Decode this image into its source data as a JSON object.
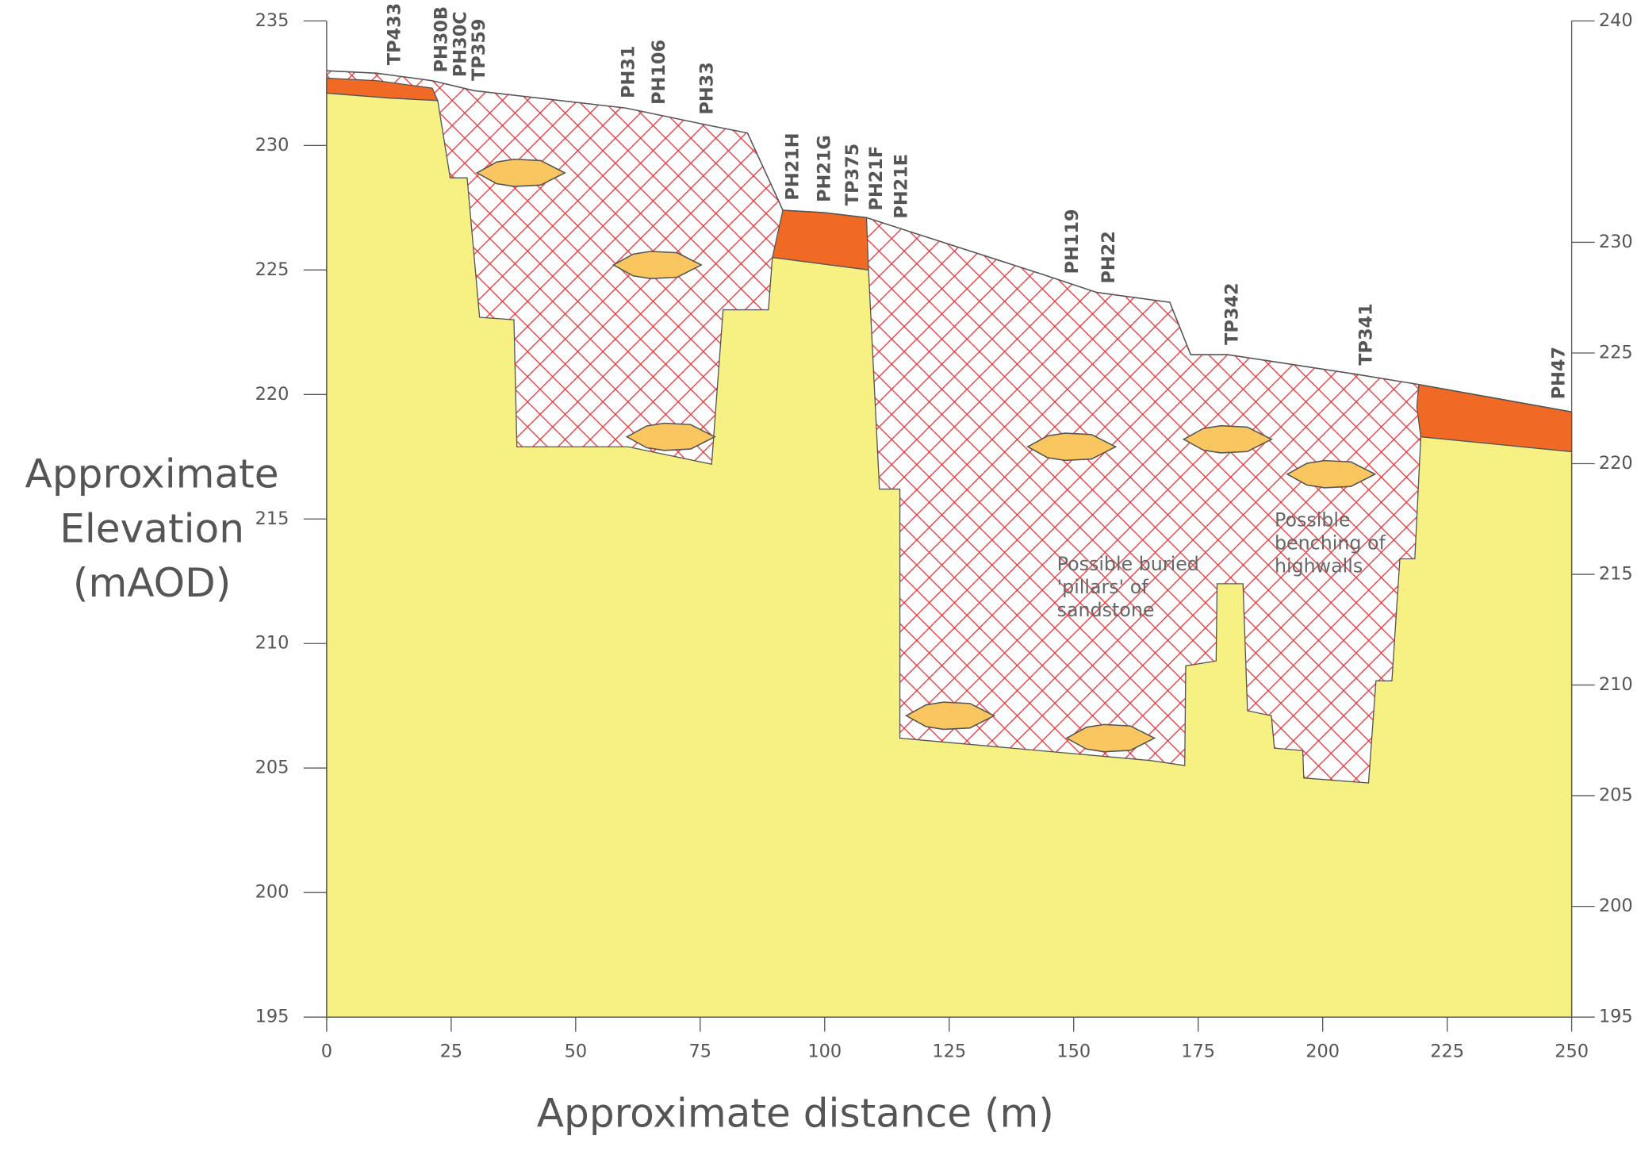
{
  "chart_data": {
    "type": "cross_section",
    "xlabel": "Approximate distance (m)",
    "ylabel": [
      "Approximate",
      "Elevation",
      "(mAOD)"
    ],
    "xlim": [
      0,
      250
    ],
    "xticks": [
      0,
      25,
      50,
      75,
      100,
      125,
      150,
      175,
      200,
      225,
      250
    ],
    "ylim": [
      195,
      235
    ],
    "yticks": [
      195,
      200,
      205,
      210,
      215,
      220,
      225,
      230,
      235
    ],
    "y2lim": [
      195,
      240
    ],
    "y2ticks": [
      195,
      200,
      205,
      210,
      215,
      220,
      225,
      230,
      240
    ],
    "colors": {
      "bedrock": "#f7f184",
      "topsoil": "#f06a25",
      "made_ground": "#e8383d",
      "lens": "#f9c660"
    },
    "surface": {
      "x": [
        0,
        10.1,
        21.2,
        29.6,
        60.1,
        76.9,
        84.5,
        91.6,
        100,
        108.4,
        144.1,
        154.6,
        169.3,
        173.5,
        180.9,
        207.1,
        219.3,
        250
      ],
      "y": [
        233.0,
        232.9,
        232.6,
        232.2,
        231.5,
        230.8,
        230.5,
        227.4,
        227.3,
        227.1,
        224.8,
        224.1,
        223.7,
        221.6,
        221.6,
        220.8,
        220.4,
        219.3
      ]
    },
    "bedrock": {
      "x": [
        0,
        12.6,
        22.3,
        24.8,
        28.2,
        30.7,
        37.6,
        38.2,
        60.5,
        77.3,
        79.6,
        88.7,
        89.5,
        108.8,
        111,
        115.1,
        115.1,
        165.5,
        172.3,
        172.5,
        178.6,
        178.8,
        184,
        184.9,
        189.7,
        190.3,
        196,
        196.2,
        209.2,
        210.7,
        213.9,
        215.5,
        218.5,
        219.7,
        250
      ],
      "y": [
        232.1,
        231.9,
        231.8,
        228.7,
        228.7,
        223.1,
        223.0,
        217.9,
        217.9,
        217.2,
        223.4,
        223.4,
        225.5,
        225.0,
        216.2,
        216.2,
        206.2,
        205.3,
        205.1,
        209.1,
        209.3,
        212.4,
        212.4,
        207.3,
        207.1,
        205.8,
        205.7,
        204.6,
        204.4,
        208.5,
        208.5,
        213.4,
        213.4,
        218.3,
        217.7
      ]
    },
    "topsoil": [
      {
        "x": [
          0,
          10.1,
          21.2,
          22.3,
          12.6,
          0
        ],
        "y": [
          232.7,
          232.6,
          232.3,
          231.8,
          231.9,
          232.1
        ]
      },
      {
        "x": [
          91.6,
          100,
          108.4,
          108.8,
          89.5
        ],
        "y": [
          227.4,
          227.3,
          227.1,
          225.0,
          225.5
        ]
      },
      {
        "x": [
          219.3,
          250,
          250,
          219.7,
          218.9
        ],
        "y": [
          220.4,
          219.3,
          217.7,
          218.3,
          219.5
        ]
      }
    ],
    "lenses": {
      "x": [
        39.0,
        66.4,
        69.1,
        149.6,
        180.9,
        201.7,
        125.2,
        157.4
      ],
      "y": [
        228.9,
        225.2,
        218.3,
        217.9,
        218.2,
        216.8,
        207.1,
        206.2
      ]
    },
    "boreholes": [
      {
        "name": "TP433",
        "x": 13.7
      },
      {
        "name": "PH30B",
        "x": 23.1
      },
      {
        "name": "PH30C",
        "x": 26.9
      },
      {
        "name": "TP359",
        "x": 30.7
      },
      {
        "name": "PH31",
        "x": 60.7
      },
      {
        "name": "PH106",
        "x": 66.8
      },
      {
        "name": "PH33",
        "x": 76.5
      },
      {
        "name": "PH21H",
        "x": 93.7
      },
      {
        "name": "PH21G",
        "x": 100
      },
      {
        "name": "TP375",
        "x": 105.7
      },
      {
        "name": "PH21F",
        "x": 110.5
      },
      {
        "name": "PH21E",
        "x": 115.5
      },
      {
        "name": "PH119",
        "x": 149.8
      },
      {
        "name": "PH22",
        "x": 157.1
      },
      {
        "name": "TP342",
        "x": 181.9
      },
      {
        "name": "TP341",
        "x": 208.8
      },
      {
        "name": "PH47",
        "x": 247.5
      }
    ],
    "annotations": [
      {
        "lines": [
          "Possible buried",
          "'pillars' of",
          "sandstone"
        ]
      },
      {
        "lines": [
          "Possible",
          "benching of",
          "highwalls"
        ]
      }
    ]
  }
}
